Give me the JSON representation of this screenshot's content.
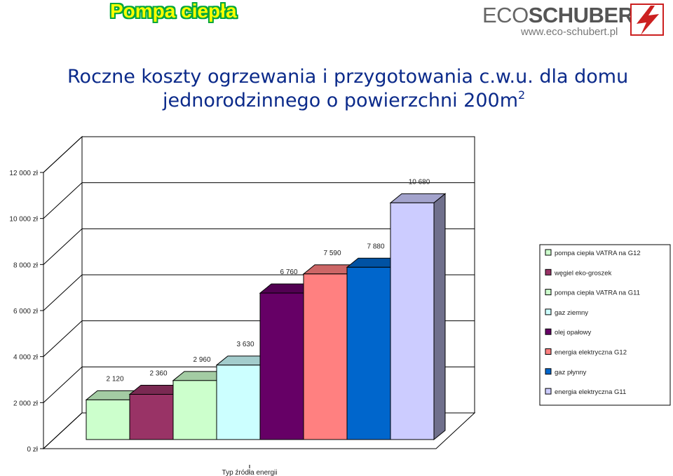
{
  "header": {
    "title": "Pompa ciepła"
  },
  "logo": {
    "brand_light": "ECO",
    "brand_strong": "SCHUBERT",
    "url": "www.eco-schubert.pl"
  },
  "page": {
    "title_line1": "Roczne koszty ogrzewania i przygotowania c.w.u. dla domu",
    "title_line2": "jednorodzinnego o powierzchni  200m",
    "title_sup": "2"
  },
  "chart_data": {
    "type": "bar",
    "xlabel": "Typ źródła energii",
    "ylabel": "",
    "ylim": [
      0,
      12000
    ],
    "y_ticks": [
      0,
      2000,
      4000,
      6000,
      8000,
      10000,
      12000
    ],
    "y_tick_labels": [
      "0 zł",
      "2 000 zł",
      "4 000 zł",
      "6 000 zł",
      "8 000 zł",
      "10 000 zł",
      "12 000 zł"
    ],
    "grid": true,
    "legend_position": "right",
    "series": [
      {
        "name": "pompa ciepła VATRA na G12",
        "value": 2120,
        "label": "2 120",
        "color": "#ccffcc"
      },
      {
        "name": "węgiel eko-groszek",
        "value": 2360,
        "label": "2 360",
        "color": "#993366"
      },
      {
        "name": "pompa ciepła VATRA na G11",
        "value": 2960,
        "label": "2 960",
        "color": "#ccffcc"
      },
      {
        "name": "gaz ziemny",
        "value": 3630,
        "label": "3 630",
        "color": "#ccffff"
      },
      {
        "name": "olej opałowy",
        "value": 6760,
        "label": "6 760",
        "color": "#660066"
      },
      {
        "name": "energia elektryczna G12",
        "value": 7590,
        "label": "7 590",
        "color": "#ff8080"
      },
      {
        "name": "gaz płynny",
        "value": 7880,
        "label": "7 880",
        "color": "#0066cc"
      },
      {
        "name": "energia elektryczna G11",
        "value": 10680,
        "label": "10 680",
        "color": "#ccccff"
      }
    ]
  }
}
